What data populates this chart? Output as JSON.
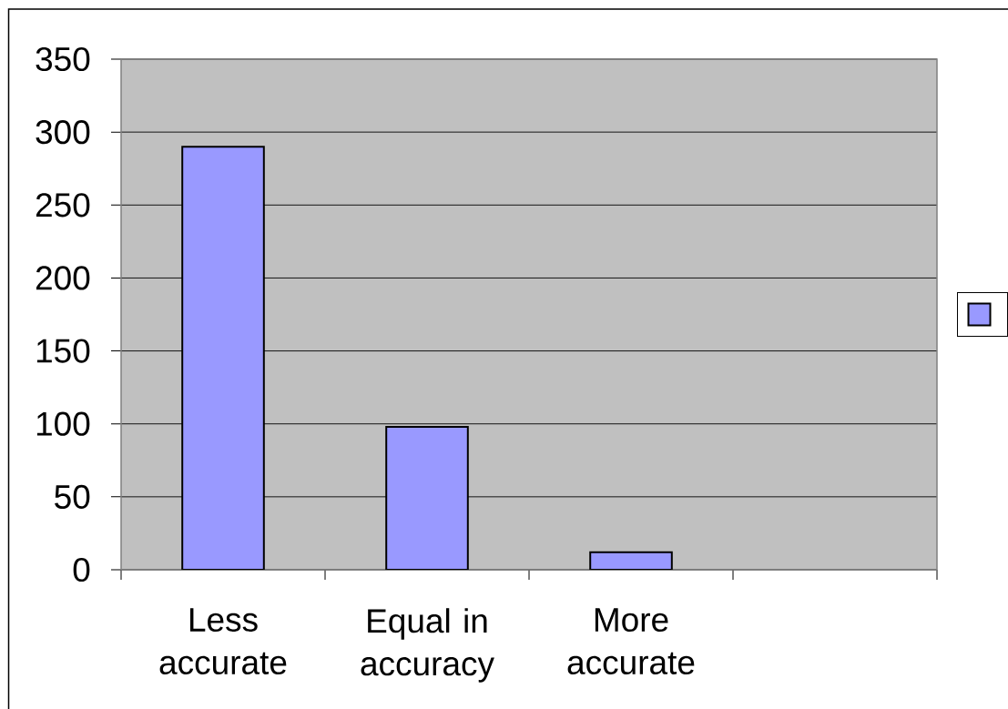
{
  "chart_data": {
    "type": "bar",
    "categories": [
      "Less accurate",
      "Equal in accuracy",
      "More accurate",
      null
    ],
    "values": [
      290,
      98,
      12,
      null
    ],
    "color": "#9999ff",
    "ylim": [
      0,
      350
    ],
    "yticks": [
      0,
      50,
      100,
      150,
      200,
      250,
      300,
      350
    ],
    "grid": "y"
  }
}
